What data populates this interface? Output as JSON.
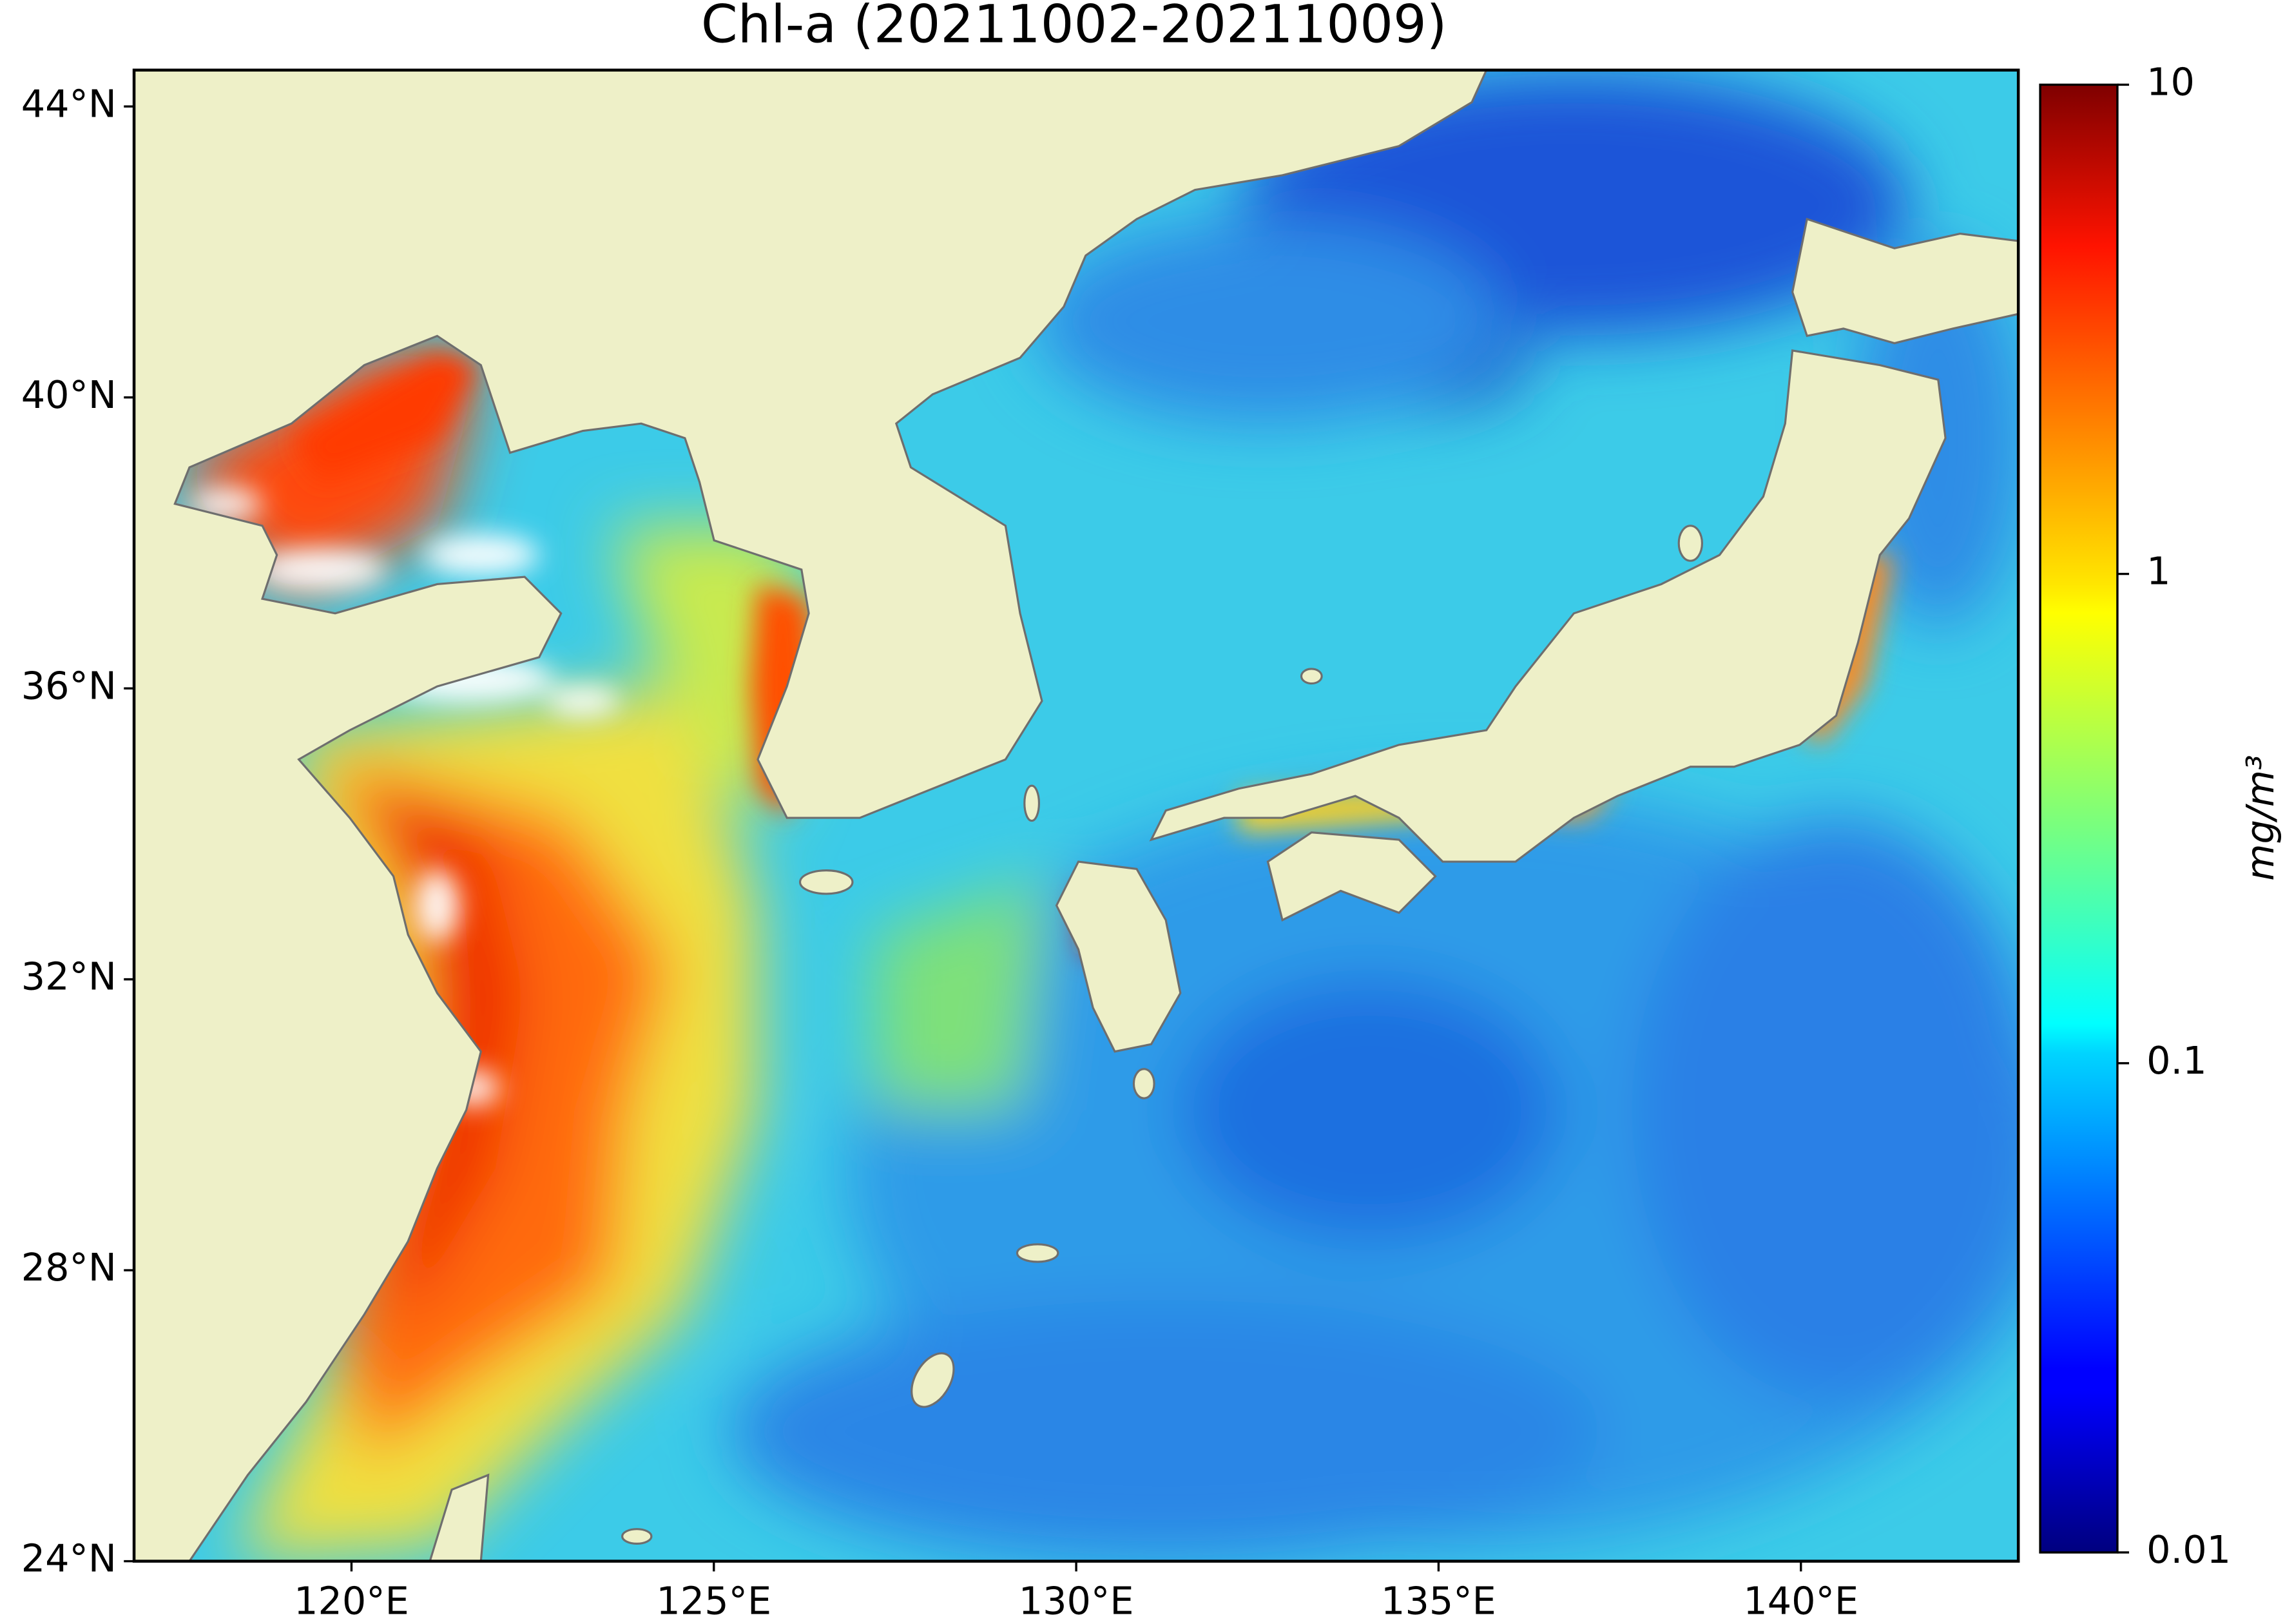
{
  "chart_data": {
    "type": "map",
    "title": "Chl-a (20211002-20211009)",
    "xlim": [
      117,
      143
    ],
    "ylim": [
      24,
      44.5
    ],
    "xticks": [
      {
        "value": 120,
        "label": "120°E"
      },
      {
        "value": 125,
        "label": "125°E"
      },
      {
        "value": 130,
        "label": "130°E"
      },
      {
        "value": 135,
        "label": "135°E"
      },
      {
        "value": 140,
        "label": "140°E"
      }
    ],
    "yticks": [
      {
        "value": 24,
        "label": "24°N"
      },
      {
        "value": 28,
        "label": "28°N"
      },
      {
        "value": 32,
        "label": "32°N"
      },
      {
        "value": 36,
        "label": "36°N"
      },
      {
        "value": 40,
        "label": "40°N"
      },
      {
        "value": 44,
        "label": "44°N"
      }
    ],
    "colorbar": {
      "label": "mg/m³",
      "log": true,
      "colormap": "jet",
      "clim": [
        0.01,
        10
      ],
      "ticks": [
        0.01,
        0.1,
        1,
        10
      ]
    }
  }
}
